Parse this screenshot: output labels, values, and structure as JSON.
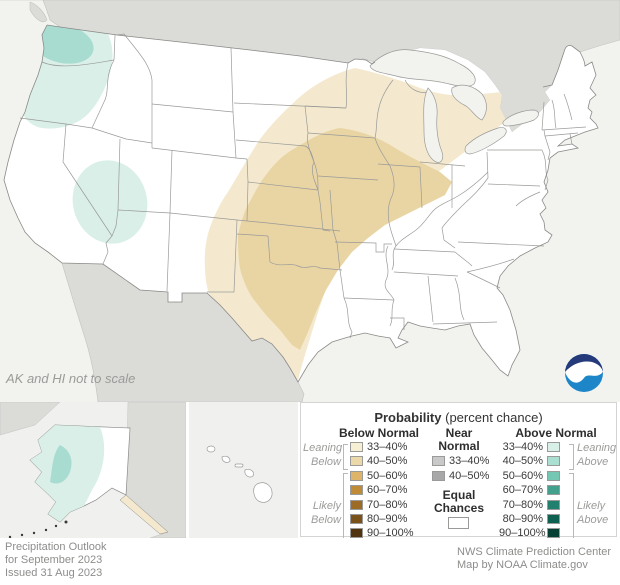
{
  "map": {
    "note": "AK and HI not to scale",
    "colors": {
      "ocean": "#f2f2ef",
      "foreign_land": "#dbdbd8",
      "us_land": "#ffffff",
      "state_line": "#9a9a98",
      "below_33_40": "#f4e9ce",
      "below_40_50": "#e9d5a4",
      "above_33_40": "#d9efe8",
      "above_40_50": "#a9dcd1"
    }
  },
  "legend": {
    "title": "Probability",
    "title_note": " (percent chance)",
    "below": {
      "header": "Below Normal",
      "leaning_lines": [
        "Leaning",
        "Below"
      ],
      "likely_lines": [
        "Likely",
        "Below"
      ],
      "items": [
        {
          "label": "33–40%",
          "color": "#f7efd3"
        },
        {
          "label": "40–50%",
          "color": "#ecd9a9"
        },
        {
          "label": "50–60%",
          "color": "#ddb469"
        },
        {
          "label": "60–70%",
          "color": "#c08b37"
        },
        {
          "label": "70–80%",
          "color": "#9c6c26"
        },
        {
          "label": "80–90%",
          "color": "#7a5118"
        },
        {
          "label": "90–100%",
          "color": "#4f340f"
        }
      ]
    },
    "near": {
      "header_lines": [
        "Near",
        "Normal"
      ],
      "items": [
        {
          "label": "33–40%",
          "color": "#c9c9c9"
        },
        {
          "label": "40–50%",
          "color": "#a8a8a8"
        }
      ],
      "equal_lines": [
        "Equal",
        "Chances"
      ],
      "equal_color": "#ffffff"
    },
    "above": {
      "header": "Above Normal",
      "leaning_lines": [
        "Leaning",
        "Above"
      ],
      "likely_lines": [
        "Likely",
        "Above"
      ],
      "items": [
        {
          "label": "33–40%",
          "color": "#d9f0e9"
        },
        {
          "label": "40–50%",
          "color": "#abdfd2"
        },
        {
          "label": "50–60%",
          "color": "#74c7b2"
        },
        {
          "label": "60–70%",
          "color": "#41a18c"
        },
        {
          "label": "70–80%",
          "color": "#20806d"
        },
        {
          "label": "80–90%",
          "color": "#0e6050"
        },
        {
          "label": "90–100%",
          "color": "#074034"
        }
      ]
    }
  },
  "footer": {
    "left_lines": [
      "Precipitation Outlook",
      "for September 2023",
      "Issued 31 Aug 2023"
    ],
    "right_lines": [
      "NWS Climate Prediction Center",
      "Map by NOAA Climate.gov"
    ]
  },
  "logo": {
    "text": "NOAA"
  }
}
